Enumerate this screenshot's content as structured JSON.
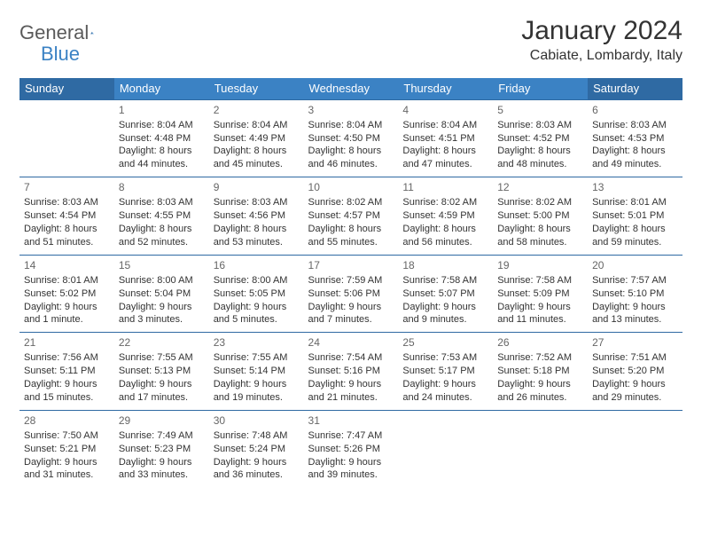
{
  "brand": {
    "part1": "General",
    "part2": "Blue"
  },
  "title": "January 2024",
  "location": "Cabiate, Lombardy, Italy",
  "colors": {
    "header_blue": "#3b82c4",
    "header_blue_dark": "#2f6aa3",
    "text": "#333333",
    "muted": "#666666",
    "bg": "#ffffff"
  },
  "day_headers": [
    "Sunday",
    "Monday",
    "Tuesday",
    "Wednesday",
    "Thursday",
    "Friday",
    "Saturday"
  ],
  "weeks": [
    [
      null,
      {
        "n": "1",
        "rise": "8:04 AM",
        "set": "4:48 PM",
        "dl": "8 hours and 44 minutes."
      },
      {
        "n": "2",
        "rise": "8:04 AM",
        "set": "4:49 PM",
        "dl": "8 hours and 45 minutes."
      },
      {
        "n": "3",
        "rise": "8:04 AM",
        "set": "4:50 PM",
        "dl": "8 hours and 46 minutes."
      },
      {
        "n": "4",
        "rise": "8:04 AM",
        "set": "4:51 PM",
        "dl": "8 hours and 47 minutes."
      },
      {
        "n": "5",
        "rise": "8:03 AM",
        "set": "4:52 PM",
        "dl": "8 hours and 48 minutes."
      },
      {
        "n": "6",
        "rise": "8:03 AM",
        "set": "4:53 PM",
        "dl": "8 hours and 49 minutes."
      }
    ],
    [
      {
        "n": "7",
        "rise": "8:03 AM",
        "set": "4:54 PM",
        "dl": "8 hours and 51 minutes."
      },
      {
        "n": "8",
        "rise": "8:03 AM",
        "set": "4:55 PM",
        "dl": "8 hours and 52 minutes."
      },
      {
        "n": "9",
        "rise": "8:03 AM",
        "set": "4:56 PM",
        "dl": "8 hours and 53 minutes."
      },
      {
        "n": "10",
        "rise": "8:02 AM",
        "set": "4:57 PM",
        "dl": "8 hours and 55 minutes."
      },
      {
        "n": "11",
        "rise": "8:02 AM",
        "set": "4:59 PM",
        "dl": "8 hours and 56 minutes."
      },
      {
        "n": "12",
        "rise": "8:02 AM",
        "set": "5:00 PM",
        "dl": "8 hours and 58 minutes."
      },
      {
        "n": "13",
        "rise": "8:01 AM",
        "set": "5:01 PM",
        "dl": "8 hours and 59 minutes."
      }
    ],
    [
      {
        "n": "14",
        "rise": "8:01 AM",
        "set": "5:02 PM",
        "dl": "9 hours and 1 minute."
      },
      {
        "n": "15",
        "rise": "8:00 AM",
        "set": "5:04 PM",
        "dl": "9 hours and 3 minutes."
      },
      {
        "n": "16",
        "rise": "8:00 AM",
        "set": "5:05 PM",
        "dl": "9 hours and 5 minutes."
      },
      {
        "n": "17",
        "rise": "7:59 AM",
        "set": "5:06 PM",
        "dl": "9 hours and 7 minutes."
      },
      {
        "n": "18",
        "rise": "7:58 AM",
        "set": "5:07 PM",
        "dl": "9 hours and 9 minutes."
      },
      {
        "n": "19",
        "rise": "7:58 AM",
        "set": "5:09 PM",
        "dl": "9 hours and 11 minutes."
      },
      {
        "n": "20",
        "rise": "7:57 AM",
        "set": "5:10 PM",
        "dl": "9 hours and 13 minutes."
      }
    ],
    [
      {
        "n": "21",
        "rise": "7:56 AM",
        "set": "5:11 PM",
        "dl": "9 hours and 15 minutes."
      },
      {
        "n": "22",
        "rise": "7:55 AM",
        "set": "5:13 PM",
        "dl": "9 hours and 17 minutes."
      },
      {
        "n": "23",
        "rise": "7:55 AM",
        "set": "5:14 PM",
        "dl": "9 hours and 19 minutes."
      },
      {
        "n": "24",
        "rise": "7:54 AM",
        "set": "5:16 PM",
        "dl": "9 hours and 21 minutes."
      },
      {
        "n": "25",
        "rise": "7:53 AM",
        "set": "5:17 PM",
        "dl": "9 hours and 24 minutes."
      },
      {
        "n": "26",
        "rise": "7:52 AM",
        "set": "5:18 PM",
        "dl": "9 hours and 26 minutes."
      },
      {
        "n": "27",
        "rise": "7:51 AM",
        "set": "5:20 PM",
        "dl": "9 hours and 29 minutes."
      }
    ],
    [
      {
        "n": "28",
        "rise": "7:50 AM",
        "set": "5:21 PM",
        "dl": "9 hours and 31 minutes."
      },
      {
        "n": "29",
        "rise": "7:49 AM",
        "set": "5:23 PM",
        "dl": "9 hours and 33 minutes."
      },
      {
        "n": "30",
        "rise": "7:48 AM",
        "set": "5:24 PM",
        "dl": "9 hours and 36 minutes."
      },
      {
        "n": "31",
        "rise": "7:47 AM",
        "set": "5:26 PM",
        "dl": "9 hours and 39 minutes."
      },
      null,
      null,
      null
    ]
  ]
}
